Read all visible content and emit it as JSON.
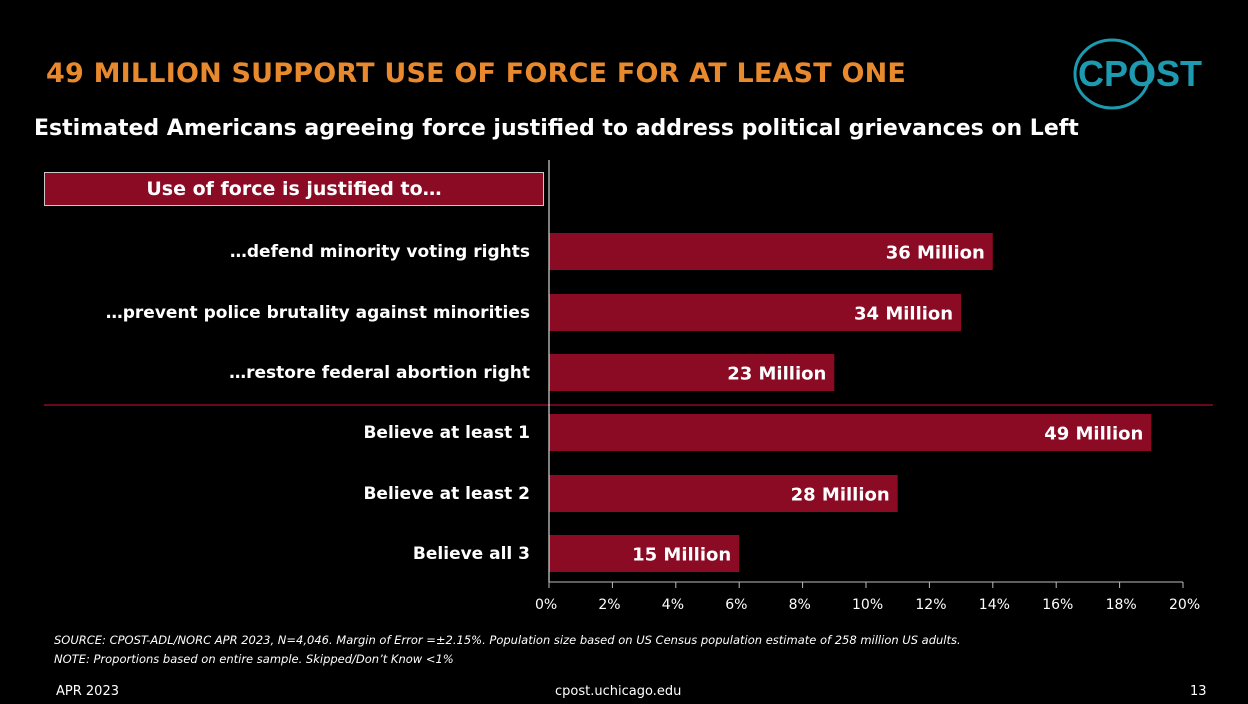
{
  "title": "49 MILLION SUPPORT USE OF FORCE FOR AT LEAST ONE",
  "subtitle": "Estimated Americans agreeing force justified to address political grievances on Left",
  "logo_text": "CPOST",
  "header_label": "Use of force is justified to…",
  "colors": {
    "bar": "#8B0A24",
    "title": "#E8892E",
    "logo": "#1E9AB0",
    "background": "#000000"
  },
  "chart_data": {
    "type": "bar",
    "orientation": "horizontal",
    "categories": [
      "…defend minority voting rights",
      "…prevent police brutality against minorities",
      "…restore federal abortion right",
      "Believe at least 1",
      "Believe at least 2",
      "Believe all 3"
    ],
    "values": [
      14,
      13,
      9,
      19,
      11,
      6
    ],
    "data_labels": [
      "36 Million",
      "34 Million",
      "23 Million",
      "49 Million",
      "28 Million",
      "15 Million"
    ],
    "xlim": [
      0,
      20
    ],
    "xticks": [
      "0%",
      "2%",
      "4%",
      "6%",
      "8%",
      "10%",
      "12%",
      "14%",
      "16%",
      "18%",
      "20%"
    ],
    "grid": false,
    "legend": "none"
  },
  "source": "SOURCE: CPOST-ADL/NORC APR 2023, N=4,046. Margin of Error =±2.15%. Population size based on US Census population estimate of 258 million US  adults.",
  "note": "NOTE: Proportions based on entire sample. Skipped/Don’t Know <1%",
  "footer": {
    "date": "APR 2023",
    "url": "cpost.uchicago.edu",
    "page": "13"
  }
}
